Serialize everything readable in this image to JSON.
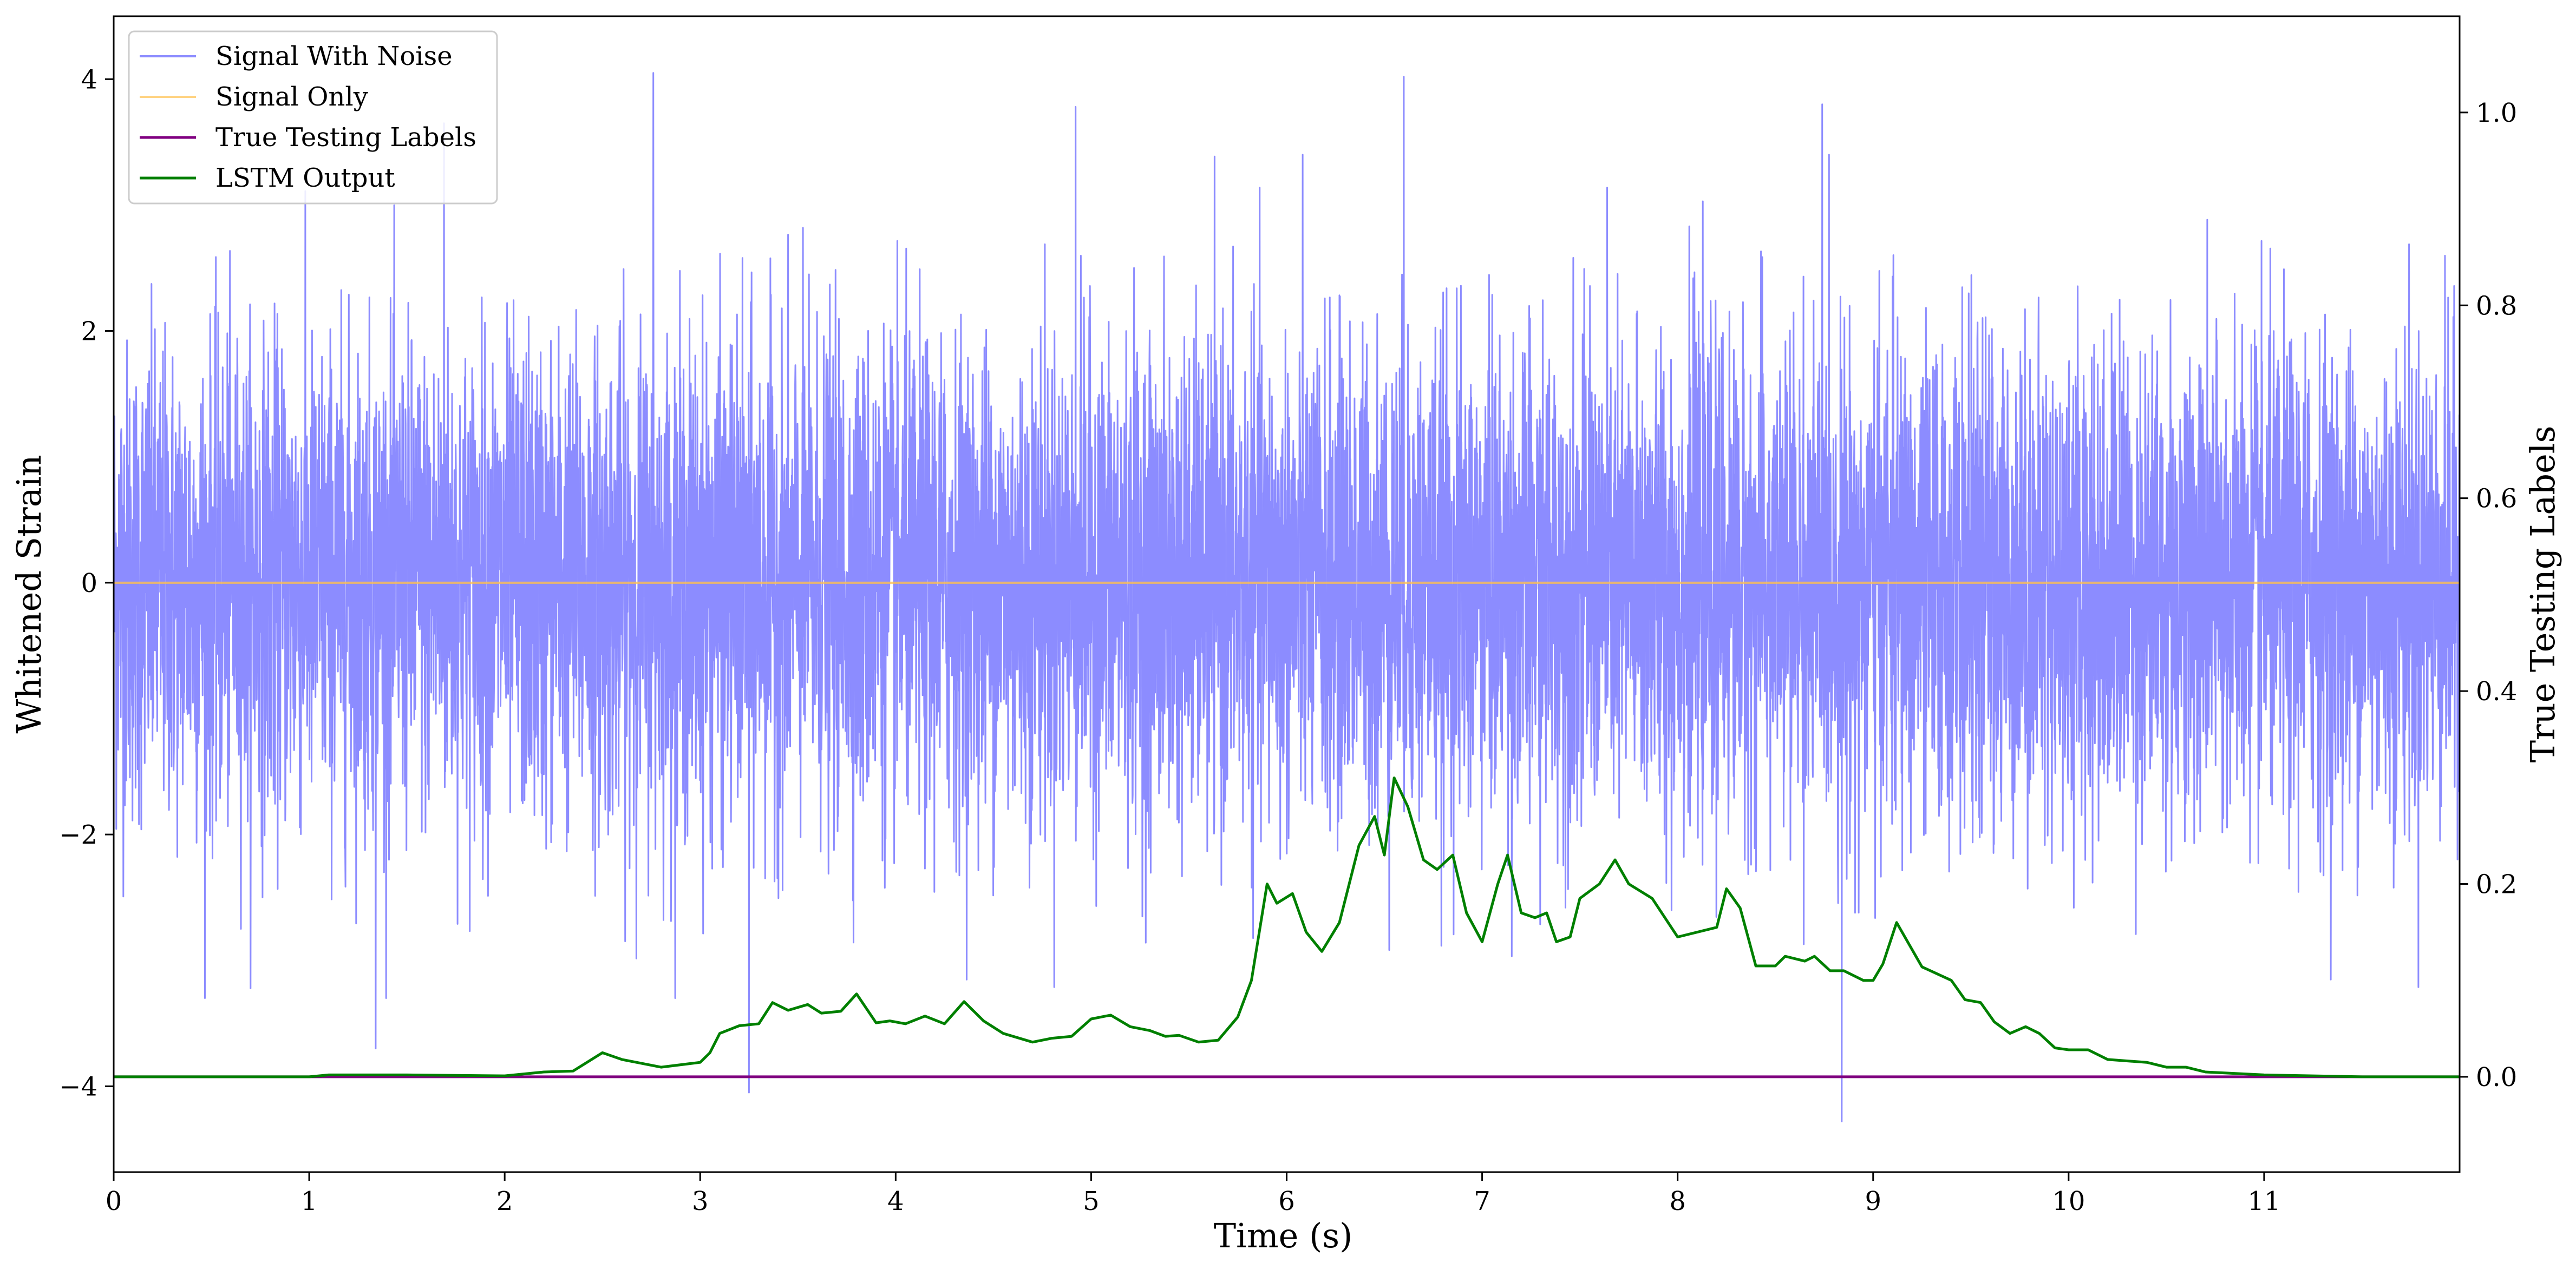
{
  "chart_data": {
    "type": "line",
    "xlabel": "Time (s)",
    "ylabel": "Whitened Strain",
    "y2label": "True Testing Labels",
    "xlim": [
      0,
      12.0
    ],
    "ylim": [
      -4.6818,
      4.5
    ],
    "y2lim": [
      -0.0988,
      1.0998
    ],
    "xticks": [
      0,
      1,
      2,
      3,
      4,
      5,
      6,
      7,
      8,
      9,
      10,
      11
    ],
    "yticks": [
      -4,
      -2,
      0,
      2,
      4
    ],
    "y2ticks": [
      0.0,
      0.2,
      0.4,
      0.6,
      0.8,
      1.0
    ],
    "xtick_labels": [
      "0",
      "1",
      "2",
      "3",
      "4",
      "5",
      "6",
      "7",
      "8",
      "9",
      "10",
      "11"
    ],
    "ytick_labels": [
      "−4",
      "−2",
      "0",
      "2",
      "4"
    ],
    "y2tick_labels": [
      "0.0",
      "0.2",
      "0.4",
      "0.6",
      "0.8",
      "1.0"
    ],
    "legend_position": "top-left",
    "grid": false,
    "series": [
      {
        "name": "Signal With Noise",
        "axis": "left",
        "color": "#7f7fff",
        "kind": "noise",
        "amplitude_envelope": [
          -2.3,
          2.4
        ],
        "notable_peaks": [
          {
            "x": 2.76,
            "y": 4.05
          },
          {
            "x": 6.6,
            "y": 4.02
          },
          {
            "x": 8.74,
            "y": 3.8
          },
          {
            "x": 4.92,
            "y": 3.78
          },
          {
            "x": 1.69,
            "y": 3.65
          },
          {
            "x": 3.25,
            "y": -4.05
          },
          {
            "x": 8.84,
            "y": -4.28
          },
          {
            "x": 1.34,
            "y": -3.7
          }
        ]
      },
      {
        "name": "Signal Only",
        "axis": "left",
        "color": "#ffc04d",
        "x": [
          0,
          12.0
        ],
        "y": [
          0,
          0
        ]
      },
      {
        "name": "True Testing Labels",
        "axis": "right",
        "color": "#800080",
        "x": [
          0,
          12.0
        ],
        "y": [
          0.0,
          0.0
        ]
      },
      {
        "name": "LSTM Output",
        "axis": "right",
        "color": "#008000",
        "x": [
          0,
          0.5,
          1.0,
          1.1,
          1.5,
          2.0,
          2.2,
          2.35,
          2.5,
          2.6,
          2.8,
          3.0,
          3.05,
          3.1,
          3.2,
          3.3,
          3.37,
          3.45,
          3.55,
          3.62,
          3.72,
          3.8,
          3.9,
          3.97,
          4.05,
          4.15,
          4.25,
          4.35,
          4.45,
          4.55,
          4.7,
          4.8,
          4.9,
          5.0,
          5.1,
          5.2,
          5.3,
          5.38,
          5.45,
          5.55,
          5.65,
          5.75,
          5.82,
          5.9,
          5.95,
          6.03,
          6.1,
          6.18,
          6.27,
          6.37,
          6.45,
          6.5,
          6.55,
          6.62,
          6.7,
          6.77,
          6.85,
          6.92,
          7.0,
          7.08,
          7.13,
          7.2,
          7.27,
          7.33,
          7.38,
          7.45,
          7.5,
          7.6,
          7.68,
          7.75,
          7.87,
          8.0,
          8.2,
          8.25,
          8.32,
          8.4,
          8.5,
          8.55,
          8.65,
          8.7,
          8.78,
          8.85,
          8.95,
          9.0,
          9.05,
          9.12,
          9.25,
          9.4,
          9.47,
          9.55,
          9.62,
          9.7,
          9.78,
          9.85,
          9.93,
          10.0,
          10.1,
          10.2,
          10.4,
          10.5,
          10.6,
          10.7,
          11.0,
          11.5,
          12.0
        ],
        "y": [
          0.0,
          0.0,
          0.0,
          0.002,
          0.002,
          0.001,
          0.005,
          0.006,
          0.025,
          0.018,
          0.01,
          0.015,
          0.025,
          0.045,
          0.053,
          0.055,
          0.077,
          0.069,
          0.075,
          0.066,
          0.068,
          0.086,
          0.056,
          0.058,
          0.055,
          0.063,
          0.055,
          0.078,
          0.058,
          0.045,
          0.036,
          0.04,
          0.042,
          0.06,
          0.064,
          0.052,
          0.048,
          0.042,
          0.043,
          0.036,
          0.038,
          0.062,
          0.1,
          0.2,
          0.18,
          0.19,
          0.15,
          0.13,
          0.16,
          0.24,
          0.27,
          0.23,
          0.31,
          0.28,
          0.225,
          0.215,
          0.23,
          0.17,
          0.14,
          0.2,
          0.23,
          0.17,
          0.165,
          0.17,
          0.14,
          0.145,
          0.185,
          0.2,
          0.225,
          0.2,
          0.185,
          0.145,
          0.155,
          0.195,
          0.175,
          0.115,
          0.115,
          0.125,
          0.12,
          0.125,
          0.11,
          0.11,
          0.1,
          0.1,
          0.117,
          0.16,
          0.114,
          0.1,
          0.08,
          0.077,
          0.057,
          0.045,
          0.052,
          0.045,
          0.03,
          0.028,
          0.028,
          0.018,
          0.015,
          0.01,
          0.01,
          0.005,
          0.002,
          0.0,
          0.0
        ]
      }
    ]
  }
}
